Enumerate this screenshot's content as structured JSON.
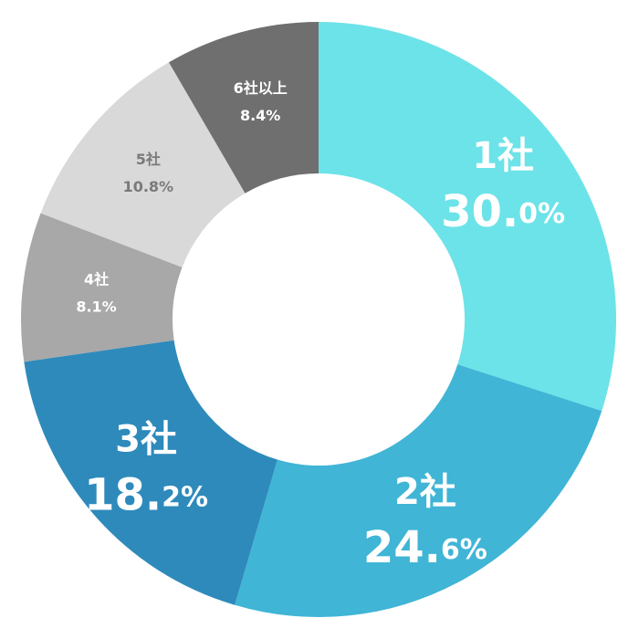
{
  "chart_data": {
    "type": "donut",
    "categories": [
      "1社",
      "2社",
      "3社",
      "4社",
      "5社",
      "6社以上"
    ],
    "values": [
      30.0,
      24.6,
      18.2,
      8.1,
      10.8,
      8.4
    ],
    "value_labels": [
      "30.0%",
      "24.6%",
      "18.2%",
      "8.1%",
      "10.8%",
      "8.4%"
    ],
    "colors": [
      "#6ce3e8",
      "#40b5d6",
      "#2e8abb",
      "#a8a8a8",
      "#d9d9d9",
      "#6f6f6f"
    ]
  }
}
